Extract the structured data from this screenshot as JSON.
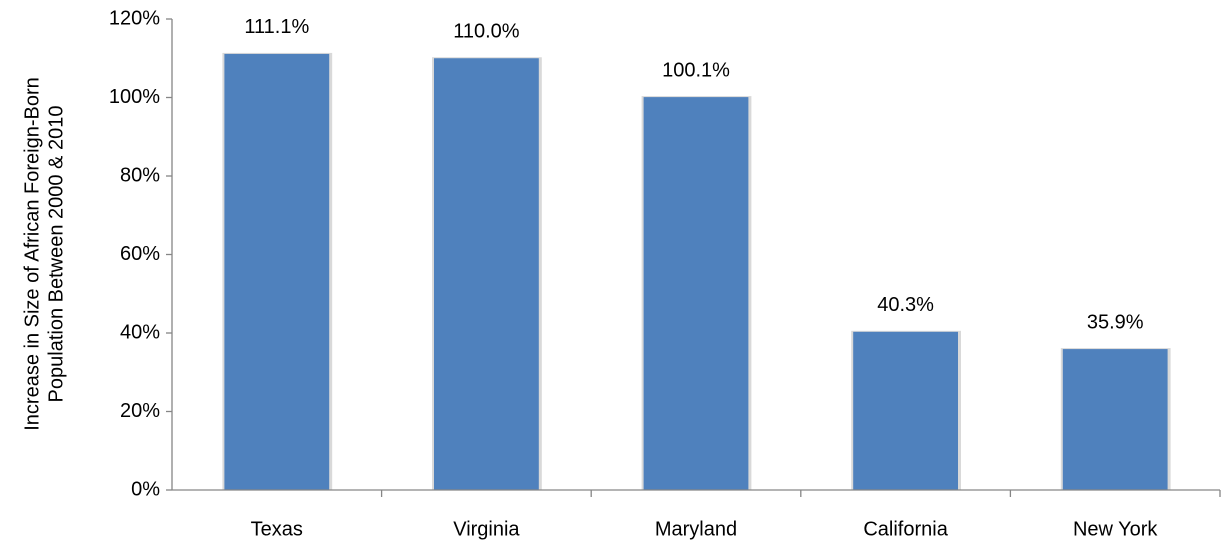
{
  "chart_data": {
    "type": "bar",
    "y_label": [
      "Increase in Size of African Foreign-Born",
      "Population Between 2000 & 2010"
    ],
    "categories": [
      "Texas",
      "Virginia",
      "Maryland",
      "California",
      "New York"
    ],
    "values": [
      111.1,
      110.0,
      100.1,
      40.3,
      35.9
    ],
    "value_labels": [
      "111.1%",
      "110.0%",
      "100.1%",
      "40.3%",
      "35.9%"
    ],
    "color": "#4f81bd",
    "ylim": [
      0,
      120
    ],
    "yticks": [
      {
        "value": 0,
        "label": "0%"
      },
      {
        "value": 20,
        "label": "20%"
      },
      {
        "value": 40,
        "label": "40%"
      },
      {
        "value": 60,
        "label": "60%"
      },
      {
        "value": 80,
        "label": "80%"
      },
      {
        "value": 100,
        "label": "100%"
      },
      {
        "value": 120,
        "label": "120%"
      }
    ],
    "grid": false
  }
}
